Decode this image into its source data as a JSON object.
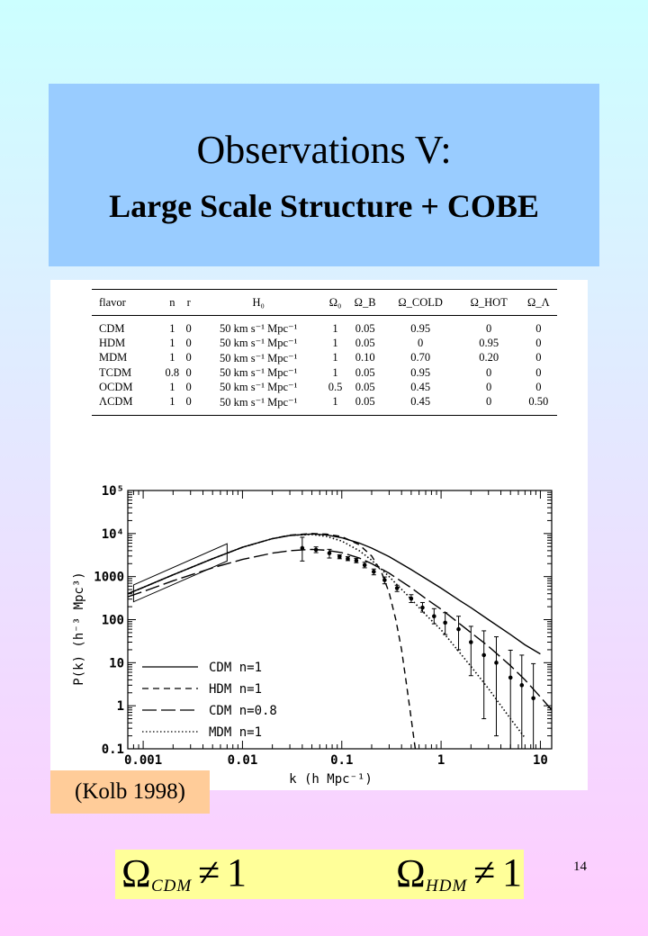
{
  "title": {
    "main": "Observations V:",
    "sub": "Large Scale Structure + COBE"
  },
  "table": {
    "headers": [
      "flavor",
      "n",
      "r",
      "H₀",
      "Ω₀",
      "Ω_B",
      "Ω_COLD",
      "Ω_HOT",
      "Ω_Λ"
    ],
    "rows": [
      [
        "CDM",
        "1",
        "0",
        "50 km s⁻¹ Mpc⁻¹",
        "1",
        "0.05",
        "0.95",
        "0",
        "0"
      ],
      [
        "HDM",
        "1",
        "0",
        "50 km s⁻¹ Mpc⁻¹",
        "1",
        "0.05",
        "0",
        "0.95",
        "0"
      ],
      [
        "MDM",
        "1",
        "0",
        "50 km s⁻¹ Mpc⁻¹",
        "1",
        "0.10",
        "0.70",
        "0.20",
        "0"
      ],
      [
        "TCDM",
        "0.8",
        "0",
        "50 km s⁻¹ Mpc⁻¹",
        "1",
        "0.05",
        "0.95",
        "0",
        "0"
      ],
      [
        "OCDM",
        "1",
        "0",
        "50 km s⁻¹ Mpc⁻¹",
        "0.5",
        "0.05",
        "0.45",
        "0",
        "0"
      ],
      [
        "ΛCDM",
        "1",
        "0",
        "50 km s⁻¹ Mpc⁻¹",
        "1",
        "0.05",
        "0.45",
        "0",
        "0.50"
      ]
    ]
  },
  "chart_data": {
    "type": "line",
    "xlabel": "k (h Mpc⁻¹)",
    "ylabel": "P(k)  (h⁻³ Mpc³)",
    "xscale": "log",
    "yscale": "log",
    "xlim": [
      0.0007,
      13
    ],
    "ylim": [
      0.1,
      100000
    ],
    "xticklabels": [
      {
        "value": 0.001,
        "label": "0.001"
      },
      {
        "value": 0.01,
        "label": "0.01"
      },
      {
        "value": 0.1,
        "label": "0.1"
      },
      {
        "value": 1,
        "label": "1"
      },
      {
        "value": 10,
        "label": "10"
      }
    ],
    "yticklabels": [
      {
        "value": 0.1,
        "label": "0.1"
      },
      {
        "value": 1,
        "label": "1"
      },
      {
        "value": 10,
        "label": "10"
      },
      {
        "value": 100,
        "label": "100"
      },
      {
        "value": 1000,
        "label": "1000"
      },
      {
        "value": 10000,
        "label": "10⁴"
      },
      {
        "value": 100000,
        "label": "10⁵"
      }
    ],
    "legend_position": "lower-left",
    "series": [
      {
        "name": "CDM n=1",
        "style": "solid",
        "x": [
          0.0007,
          0.001,
          0.002,
          0.005,
          0.01,
          0.02,
          0.03,
          0.05,
          0.07,
          0.1,
          0.15,
          0.2,
          0.3,
          0.5,
          0.7,
          1,
          1.5,
          2,
          3,
          5,
          7,
          10
        ],
        "y": [
          400,
          560,
          1100,
          2600,
          4800,
          7600,
          9000,
          9800,
          9300,
          8000,
          6000,
          4600,
          2900,
          1450,
          900,
          540,
          290,
          190,
          100,
          45,
          26,
          16
        ]
      },
      {
        "name": "HDM n=1",
        "style": "dashed",
        "x": [
          0.0007,
          0.001,
          0.002,
          0.005,
          0.01,
          0.02,
          0.03,
          0.05,
          0.07,
          0.1,
          0.15,
          0.2,
          0.25,
          0.3,
          0.35,
          0.4,
          0.45,
          0.5,
          0.55
        ],
        "y": [
          400,
          560,
          1100,
          2600,
          4800,
          7600,
          9200,
          10000,
          9700,
          8500,
          5500,
          3000,
          1300,
          420,
          100,
          20,
          3,
          0.5,
          0.1
        ]
      },
      {
        "name": "CDM n=0.8",
        "style": "longdash",
        "x": [
          0.0007,
          0.001,
          0.002,
          0.005,
          0.01,
          0.02,
          0.03,
          0.05,
          0.07,
          0.1,
          0.15,
          0.2,
          0.3,
          0.5,
          0.7,
          1,
          2,
          3,
          5,
          7,
          10,
          13
        ],
        "y": [
          340,
          450,
          800,
          1600,
          2500,
          3500,
          4000,
          4300,
          4100,
          3600,
          2700,
          2000,
          1200,
          550,
          310,
          175,
          50,
          24,
          8.5,
          4,
          1.6,
          0.8
        ]
      },
      {
        "name": "MDM n=1",
        "style": "dotted",
        "x": [
          0.0007,
          0.001,
          0.002,
          0.005,
          0.01,
          0.02,
          0.03,
          0.05,
          0.07,
          0.1,
          0.15,
          0.2,
          0.3,
          0.5,
          0.7,
          1,
          2,
          3,
          5,
          7
        ],
        "y": [
          400,
          560,
          1100,
          2600,
          4800,
          7600,
          9100,
          9500,
          8600,
          6700,
          4000,
          2400,
          1000,
          300,
          130,
          58,
          8.2,
          2.5,
          0.5,
          0.18
        ]
      }
    ],
    "data_points": {
      "x": [
        0.04,
        0.055,
        0.075,
        0.095,
        0.115,
        0.14,
        0.17,
        0.21,
        0.27,
        0.36,
        0.5,
        0.65,
        0.85,
        1.1,
        1.5,
        2,
        2.7,
        3.6,
        5,
        6.5,
        8.5
      ],
      "y": [
        4600,
        4200,
        3500,
        2900,
        2600,
        2350,
        1850,
        1300,
        830,
        540,
        310,
        190,
        120,
        85,
        60,
        30,
        15,
        10,
        4.5,
        3,
        1.5
      ],
      "err_low": [
        2300,
        600,
        800,
        300,
        250,
        250,
        250,
        200,
        150,
        90,
        60,
        40,
        40,
        40,
        40,
        25,
        14.5,
        9.8,
        4.4,
        2.95,
        1.49
      ],
      "err_high": [
        3600,
        700,
        800,
        300,
        300,
        300,
        300,
        200,
        150,
        90,
        70,
        60,
        60,
        60,
        60,
        40,
        40,
        30,
        15,
        12,
        8
      ]
    },
    "cobe_box": {
      "x_range": [
        0.0008,
        0.007
      ],
      "low_at_xmin": 260,
      "high_at_xmin": 640,
      "low_at_xmax": 2300,
      "high_at_xmax": 5800
    }
  },
  "citation": "(Kolb 1998)",
  "formula": {
    "omega": "Ω",
    "sub1": "CDM",
    "sub2": "HDM",
    "neq": "≠",
    "one": "1"
  },
  "page_number": "14"
}
